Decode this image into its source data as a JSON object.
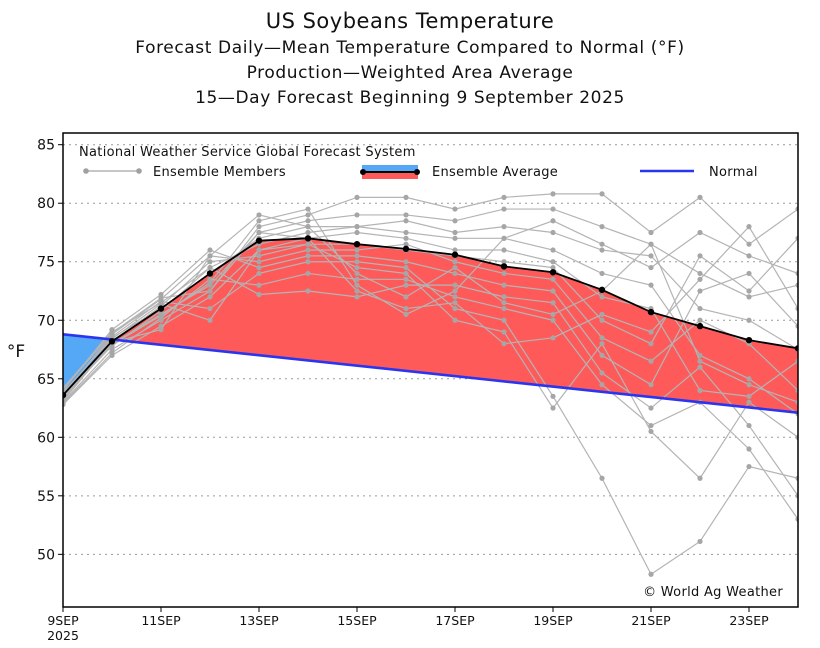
{
  "chart_data": {
    "type": "line",
    "title": "US Soybeans Temperature",
    "subtitle_lines": [
      "Forecast Daily—Mean Temperature Compared to Normal (°F)",
      "Production—Weighted Area Average",
      "15—Day Forecast Beginning 9 September 2025"
    ],
    "ylabel": "°F",
    "ylim": [
      45.5,
      86
    ],
    "yticks": [
      50,
      55,
      60,
      65,
      70,
      75,
      80,
      85
    ],
    "x_day_range": [
      9,
      24
    ],
    "xticks": [
      {
        "day": 9,
        "label": "9SEP"
      },
      {
        "day": 11,
        "label": "11SEP"
      },
      {
        "day": 13,
        "label": "13SEP"
      },
      {
        "day": 15,
        "label": "15SEP"
      },
      {
        "day": 17,
        "label": "17SEP"
      },
      {
        "day": 19,
        "label": "19SEP"
      },
      {
        "day": 21,
        "label": "21SEP"
      },
      {
        "day": 23,
        "label": "23SEP"
      }
    ],
    "year_label": "2025",
    "legend": {
      "source": "National Weather Service Global Forecast System",
      "members_label": "Ensemble Members",
      "average_label": "Ensemble Average",
      "normal_label": "Normal"
    },
    "credit": "© World Ag Weather",
    "colors": {
      "above_normal": "#ff5a5a",
      "below_normal": "#55a8f5",
      "normal_line": "#2a35f0",
      "average_line": "#000000",
      "members": "#b4b4b4"
    },
    "normal": {
      "day": [
        9,
        24
      ],
      "values": [
        68.8,
        62.1
      ]
    },
    "ensemble_average": {
      "day": [
        9,
        10,
        11,
        12,
        13,
        14,
        15,
        16,
        17,
        18,
        19,
        20,
        21,
        22,
        23,
        24
      ],
      "values": [
        63.6,
        68.2,
        71.0,
        74.0,
        76.8,
        77.0,
        76.5,
        76.1,
        75.6,
        74.6,
        74.1,
        72.6,
        70.7,
        69.5,
        68.3,
        67.6
      ]
    },
    "ensemble_members": {
      "day": [
        9,
        10,
        11,
        12,
        13,
        14,
        15,
        16,
        17,
        18,
        19,
        20,
        21,
        22,
        23,
        24
      ],
      "series": [
        [
          63.0,
          67.5,
          70.0,
          72.5,
          78.0,
          79.0,
          80.5,
          80.5,
          79.5,
          80.5,
          80.8,
          80.8,
          77.5,
          80.5,
          76.5,
          79.5
        ],
        [
          63.4,
          68.0,
          70.5,
          73.0,
          77.5,
          78.5,
          79.0,
          79.0,
          78.5,
          79.5,
          79.5,
          78.0,
          76.5,
          74.0,
          72.0,
          73.0
        ],
        [
          63.8,
          68.5,
          71.0,
          74.0,
          77.0,
          78.0,
          78.0,
          78.5,
          77.5,
          78.0,
          77.5,
          76.0,
          75.5,
          71.0,
          70.0,
          67.5
        ],
        [
          64.2,
          69.0,
          71.5,
          74.5,
          76.5,
          77.5,
          78.0,
          77.5,
          77.0,
          77.0,
          76.0,
          74.0,
          73.0,
          67.0,
          65.0,
          62.0
        ],
        [
          62.8,
          67.0,
          69.5,
          72.0,
          76.0,
          77.0,
          77.5,
          77.0,
          76.0,
          76.0,
          75.0,
          72.0,
          71.0,
          64.0,
          63.5,
          66.5
        ],
        [
          63.2,
          68.2,
          71.2,
          75.0,
          75.5,
          76.5,
          76.5,
          76.0,
          75.5,
          75.0,
          74.5,
          70.0,
          68.0,
          75.5,
          72.5,
          77.0
        ],
        [
          63.6,
          68.8,
          71.8,
          75.5,
          75.0,
          76.0,
          76.0,
          76.5,
          75.0,
          74.0,
          73.5,
          68.5,
          66.5,
          70.0,
          68.0,
          64.0
        ],
        [
          64.0,
          69.2,
          72.2,
          76.0,
          74.5,
          75.5,
          75.5,
          75.0,
          74.0,
          73.0,
          72.5,
          67.0,
          64.5,
          72.5,
          74.0,
          69.5
        ],
        [
          63.5,
          67.8,
          70.8,
          74.5,
          72.2,
          72.5,
          72.0,
          73.0,
          73.0,
          72.0,
          71.5,
          65.5,
          62.5,
          66.0,
          61.0,
          55.0
        ],
        [
          62.9,
          67.2,
          70.2,
          73.5,
          73.0,
          74.0,
          73.5,
          73.5,
          72.0,
          71.0,
          70.0,
          64.5,
          61.0,
          63.0,
          59.0,
          53.0
        ],
        [
          63.7,
          68.6,
          71.6,
          71.0,
          74.0,
          75.0,
          75.0,
          74.5,
          71.0,
          70.0,
          63.5,
          56.5,
          48.3,
          51.1,
          57.5,
          56.5
        ],
        [
          63.3,
          68.4,
          71.4,
          70.0,
          76.0,
          76.5,
          74.5,
          74.0,
          70.0,
          69.0,
          62.5,
          68.0,
          60.5,
          56.5,
          63.0,
          60.0
        ],
        [
          64.1,
          68.9,
          71.9,
          72.5,
          77.5,
          77.0,
          72.5,
          71.0,
          71.5,
          68.0,
          68.5,
          70.5,
          69.0,
          73.5,
          78.0,
          71.0
        ],
        [
          63.9,
          67.9,
          70.4,
          73.2,
          78.5,
          79.5,
          73.0,
          70.5,
          72.5,
          77.0,
          78.5,
          76.5,
          74.5,
          77.5,
          75.5,
          74.0
        ],
        [
          63.1,
          68.1,
          69.2,
          75.5,
          79.0,
          78.0,
          74.0,
          72.0,
          74.5,
          71.5,
          70.5,
          72.5,
          76.5,
          66.5,
          64.5,
          63.0
        ]
      ]
    }
  }
}
